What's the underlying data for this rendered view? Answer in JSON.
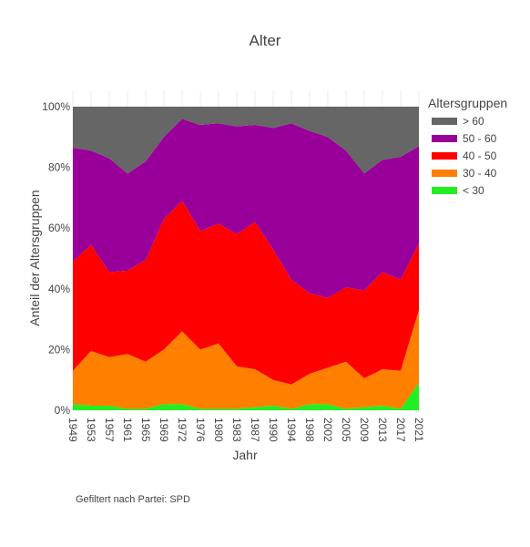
{
  "chart_data": {
    "type": "area",
    "stacked": true,
    "normalized": true,
    "title": "Alter",
    "xlabel": "Jahr",
    "ylabel": "Anteil der Altersgruppen",
    "ylim": [
      0,
      100
    ],
    "yticks": [
      "0%",
      "20%",
      "40%",
      "60%",
      "80%",
      "100%"
    ],
    "x": [
      "1949",
      "1953",
      "1957",
      "1961",
      "1965",
      "1969",
      "1972",
      "1976",
      "1980",
      "1983",
      "1987",
      "1990",
      "1994",
      "1998",
      "2002",
      "2005",
      "2009",
      "2013",
      "2017",
      "2021"
    ],
    "legend_title": "Altersgruppen",
    "legend_placement": "top-right",
    "series": [
      {
        "name": "< 30",
        "color": "#22ee22",
        "values": [
          2,
          1.5,
          1.5,
          0.5,
          0.5,
          2,
          2,
          0.5,
          0.5,
          0.5,
          1,
          1.5,
          0.5,
          2,
          2,
          0.5,
          1,
          1.5,
          0.5,
          9
        ]
      },
      {
        "name": "30 - 40",
        "color": "#ff8000",
        "values": [
          11,
          18,
          16,
          18,
          15.5,
          18,
          24,
          19.5,
          21.5,
          14,
          12.5,
          8.5,
          8,
          10,
          12,
          15.5,
          9.5,
          12,
          12.5,
          24
        ]
      },
      {
        "name": "40 - 50",
        "color": "#ff0000",
        "values": [
          36,
          35,
          28,
          27.5,
          33.5,
          43,
          43,
          39,
          39.5,
          43.5,
          48.5,
          43,
          34.5,
          26.5,
          23,
          24.5,
          29,
          32,
          30,
          22
        ]
      },
      {
        "name": "50 - 60",
        "color": "#990099",
        "values": [
          37.5,
          31,
          37.5,
          32,
          32.5,
          27,
          27,
          35,
          33,
          35.5,
          32,
          40,
          51.5,
          53.5,
          53,
          45,
          38.5,
          37,
          40.5,
          32
        ]
      },
      {
        "name": "> 60",
        "color": "#666666",
        "values": [
          13.5,
          14.5,
          17,
          22,
          18,
          10,
          4,
          6,
          5.5,
          6.5,
          6,
          7,
          5.5,
          8,
          10,
          14.5,
          22,
          17.5,
          16.5,
          13
        ]
      }
    ],
    "grid": false
  },
  "footnote": "Gefiltert nach Partei: SPD"
}
